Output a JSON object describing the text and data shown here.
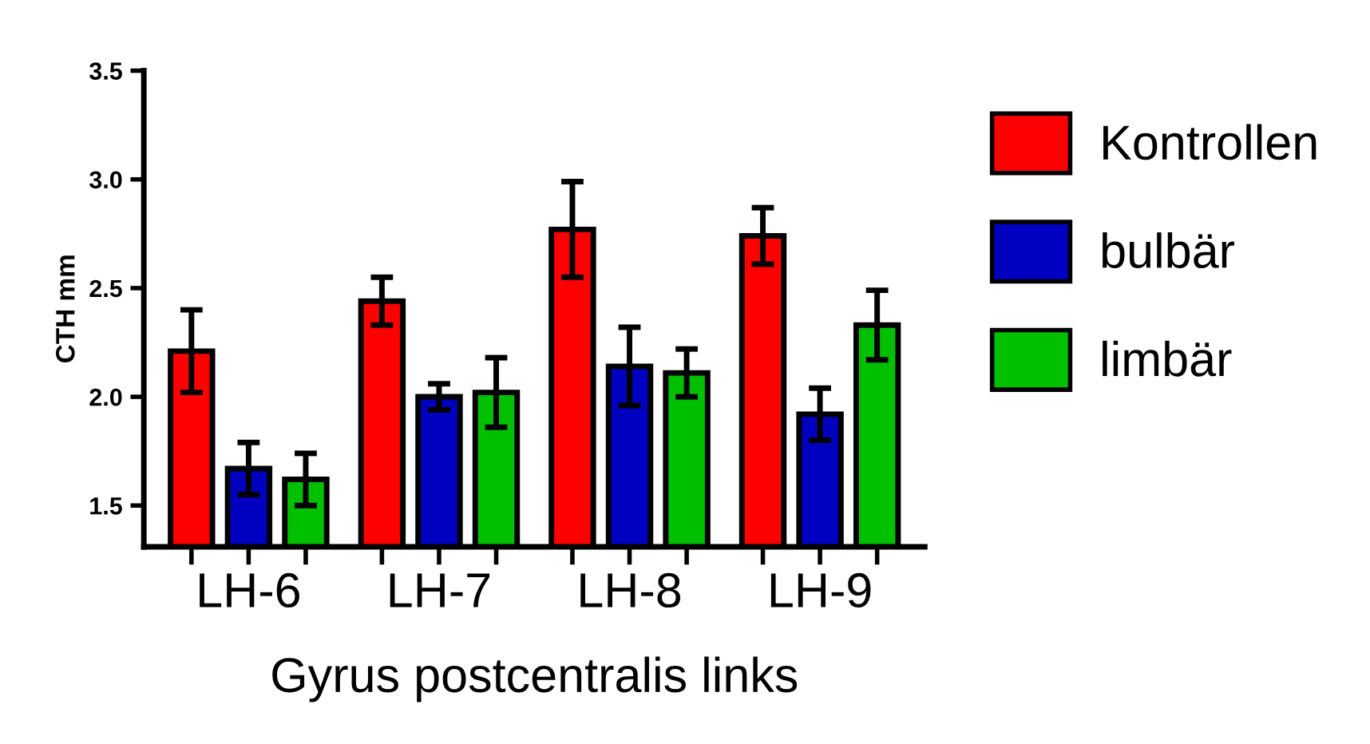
{
  "chart_data": {
    "type": "bar",
    "xlabel": "Gyrus postcentralis links",
    "ylabel": "CTH mm",
    "categories": [
      "LH-6",
      "LH-7",
      "LH-8",
      "LH-9"
    ],
    "series": [
      {
        "name": "Kontrollen",
        "color": "#ff0000",
        "values": [
          2.21,
          2.44,
          2.77,
          2.74
        ],
        "errors": [
          0.19,
          0.11,
          0.22,
          0.13
        ]
      },
      {
        "name": "bulbär",
        "color": "#0000c0",
        "values": [
          1.67,
          2.0,
          2.14,
          1.92
        ],
        "errors": [
          0.12,
          0.06,
          0.18,
          0.12
        ]
      },
      {
        "name": "limbär",
        "color": "#00c000",
        "values": [
          1.62,
          2.02,
          2.11,
          2.33
        ],
        "errors": [
          0.12,
          0.16,
          0.11,
          0.16
        ]
      }
    ],
    "ylim": [
      1.31,
      3.5
    ],
    "yticks": [
      1.5,
      {
        "value": 2,
        "label": "2.0"
      },
      2.5,
      {
        "value": 3,
        "label": "3.0"
      },
      3.5
    ],
    "grid": false,
    "legend": "right"
  }
}
